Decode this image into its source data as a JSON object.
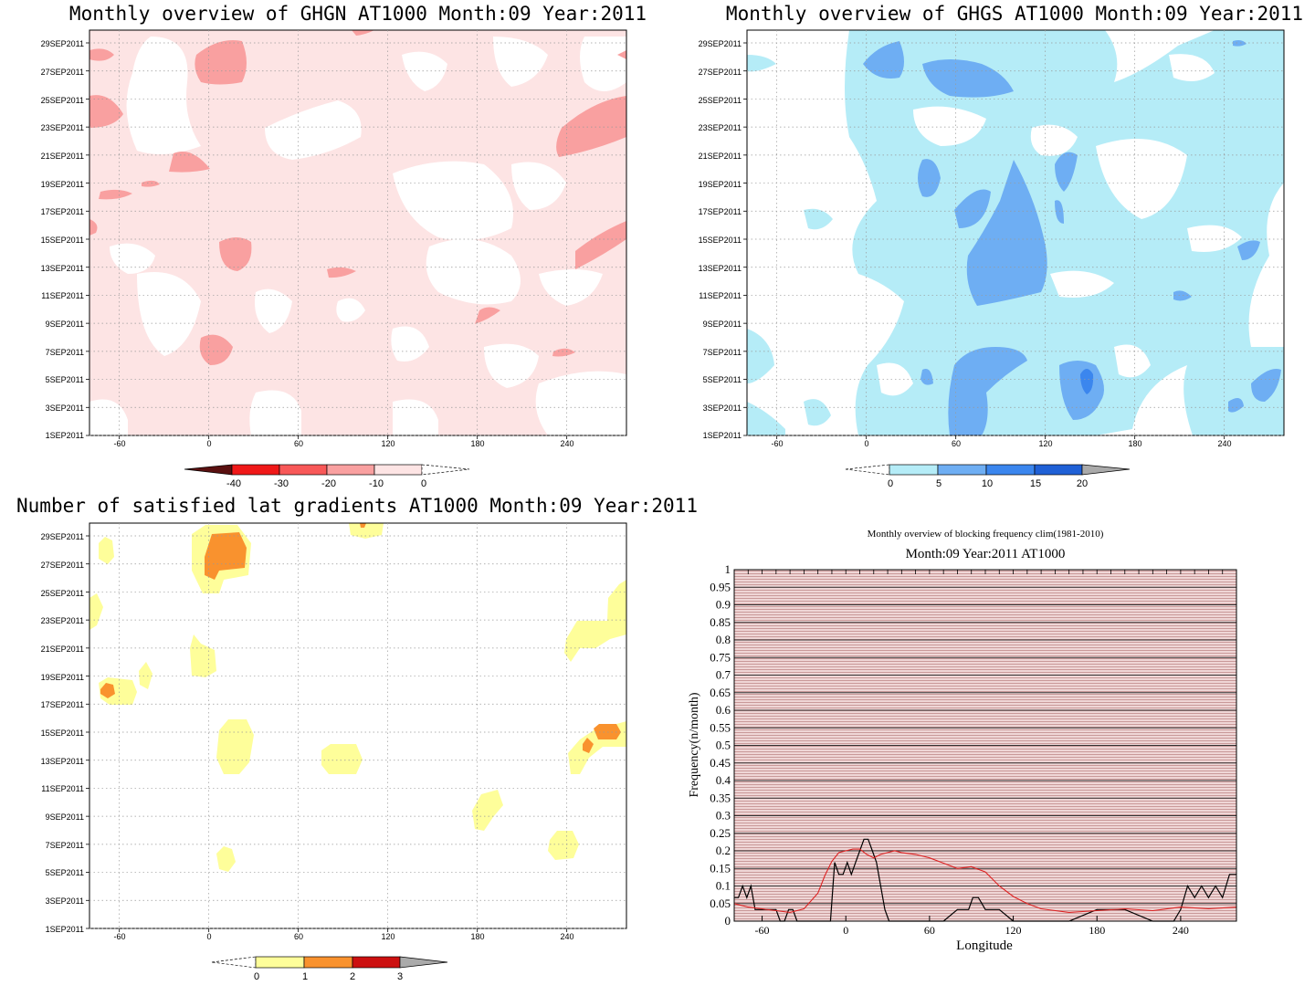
{
  "colors": {
    "ghgn_levels": [
      "#5a1010",
      "#f01818",
      "#f85858",
      "#f9a0a0",
      "#fde4e4"
    ],
    "ghgs_levels": [
      "#b5ecf7",
      "#6eaef3",
      "#3b86ee",
      "#1f60d6",
      "#aaaaaa"
    ],
    "sat_levels": [
      "#fefe9a",
      "#f9922e",
      "#cc1010",
      "#aaaaaa"
    ],
    "blocking_line": "#000000",
    "clim_line": "#dd2222",
    "blocking_bg": "#e8c8c8"
  },
  "chart_data": [
    {
      "type": "heatmap",
      "title": "Monthly overview of GHGN AT1000 Month:09 Year:2011",
      "x_ticks": [
        "-60",
        "0",
        "60",
        "120",
        "180",
        "240"
      ],
      "x_tick_values": [
        -60,
        0,
        60,
        120,
        180,
        240
      ],
      "xlim": [
        -80,
        280
      ],
      "y_ticks": [
        "1SEP2011",
        "3SEP2011",
        "5SEP2011",
        "7SEP2011",
        "9SEP2011",
        "11SEP2011",
        "13SEP2011",
        "15SEP2011",
        "17SEP2011",
        "19SEP2011",
        "21SEP2011",
        "23SEP2011",
        "25SEP2011",
        "27SEP2011",
        "29SEP2011"
      ],
      "colorbar": {
        "labels": [
          "-40",
          "-30",
          "-20",
          "-10",
          "0"
        ]
      },
      "grid": true
    },
    {
      "type": "heatmap",
      "title": "Monthly overview of GHGS AT1000 Month:09 Year:2011",
      "x_ticks": [
        "-60",
        "0",
        "60",
        "120",
        "180",
        "240"
      ],
      "x_tick_values": [
        -60,
        0,
        60,
        120,
        180,
        240
      ],
      "xlim": [
        -80,
        280
      ],
      "y_ticks": [
        "1SEP2011",
        "3SEP2011",
        "5SEP2011",
        "7SEP2011",
        "9SEP2011",
        "11SEP2011",
        "13SEP2011",
        "15SEP2011",
        "17SEP2011",
        "19SEP2011",
        "21SEP2011",
        "23SEP2011",
        "25SEP2011",
        "27SEP2011",
        "29SEP2011"
      ],
      "colorbar": {
        "labels": [
          "0",
          "5",
          "10",
          "15",
          "20"
        ]
      },
      "grid": true
    },
    {
      "type": "heatmap",
      "title": "Number of satisfied lat gradients AT1000 Month:09 Year:2011",
      "x_ticks": [
        "-60",
        "0",
        "60",
        "120",
        "180",
        "240"
      ],
      "x_tick_values": [
        -60,
        0,
        60,
        120,
        180,
        240
      ],
      "xlim": [
        -80,
        280
      ],
      "y_ticks": [
        "1SEP2011",
        "3SEP2011",
        "5SEP2011",
        "7SEP2011",
        "9SEP2011",
        "11SEP2011",
        "13SEP2011",
        "15SEP2011",
        "17SEP2011",
        "19SEP2011",
        "21SEP2011",
        "23SEP2011",
        "25SEP2011",
        "27SEP2011",
        "29SEP2011"
      ],
      "colorbar": {
        "labels": [
          "0",
          "1",
          "2",
          "3"
        ]
      },
      "grid": true
    },
    {
      "type": "line",
      "title": "Monthly overview of blocking frequency clim(1981-2010)",
      "subtitle": "Month:09 Year:2011  AT1000",
      "xlabel": "Longitude",
      "ylabel": "Frequency(n/month)",
      "xlim": [
        -80,
        280
      ],
      "ylim": [
        0,
        1
      ],
      "x_ticks": [
        "-60",
        "0",
        "60",
        "120",
        "180",
        "240"
      ],
      "x_tick_values": [
        -60,
        0,
        60,
        120,
        180,
        240
      ],
      "y_ticks": [
        "0",
        "0.05",
        "0.1",
        "0.15",
        "0.2",
        "0.25",
        "0.3",
        "0.35",
        "0.4",
        "0.45",
        "0.5",
        "0.55",
        "0.6",
        "0.65",
        "0.7",
        "0.75",
        "0.8",
        "0.85",
        "0.9",
        "0.95",
        "1"
      ],
      "y_tick_values": [
        0,
        0.05,
        0.1,
        0.15,
        0.2,
        0.25,
        0.3,
        0.35,
        0.4,
        0.45,
        0.5,
        0.55,
        0.6,
        0.65,
        0.7,
        0.75,
        0.8,
        0.85,
        0.9,
        0.95,
        1
      ],
      "series": [
        {
          "x": [
            -80,
            -77,
            -74,
            -71,
            -68,
            -65,
            -62,
            -59,
            -56,
            -53,
            -50,
            -47,
            -44,
            -41,
            -38,
            -35,
            -32,
            -29,
            -26,
            -23,
            -20,
            -17,
            -14,
            -11,
            -8,
            -5,
            -2,
            1,
            4,
            7,
            10,
            13,
            16,
            19,
            22,
            25,
            28,
            31,
            34,
            37,
            40,
            50,
            60,
            70,
            80,
            82,
            85,
            88,
            91,
            95,
            100,
            110,
            120,
            140,
            160,
            180,
            200,
            220,
            235,
            240,
            245,
            250,
            255,
            260,
            265,
            270,
            275,
            280
          ],
          "y": [
            0.067,
            0.067,
            0.1,
            0.067,
            0.1,
            0.033,
            0.033,
            0.033,
            0.033,
            0.033,
            0.033,
            0.0,
            0.0,
            0.033,
            0.033,
            0.0,
            0.0,
            0.0,
            0.0,
            0.0,
            0.0,
            0.0,
            0.0,
            0.0,
            0.167,
            0.133,
            0.133,
            0.167,
            0.133,
            0.167,
            0.2,
            0.233,
            0.233,
            0.2,
            0.167,
            0.1,
            0.033,
            0.0,
            0.0,
            0.0,
            0.0,
            0.0,
            0.0,
            0.0,
            0.033,
            0.033,
            0.033,
            0.033,
            0.067,
            0.067,
            0.033,
            0.033,
            0.0,
            0.0,
            0.0,
            0.033,
            0.033,
            0.0,
            0.0,
            0.033,
            0.1,
            0.067,
            0.1,
            0.067,
            0.1,
            0.067,
            0.133,
            0.133
          ]
        },
        {
          "x": [
            -80,
            -70,
            -60,
            -50,
            -40,
            -30,
            -20,
            -15,
            -10,
            -5,
            0,
            5,
            10,
            15,
            20,
            25,
            30,
            35,
            40,
            50,
            60,
            70,
            80,
            90,
            100,
            110,
            120,
            130,
            140,
            160,
            180,
            200,
            220,
            240,
            260,
            280
          ],
          "y": [
            0.05,
            0.04,
            0.035,
            0.03,
            0.025,
            0.035,
            0.08,
            0.13,
            0.17,
            0.195,
            0.2,
            0.205,
            0.205,
            0.19,
            0.18,
            0.19,
            0.195,
            0.2,
            0.195,
            0.19,
            0.18,
            0.165,
            0.15,
            0.155,
            0.14,
            0.1,
            0.07,
            0.05,
            0.035,
            0.025,
            0.03,
            0.035,
            0.03,
            0.04,
            0.035,
            0.04
          ]
        }
      ],
      "grid": true
    }
  ]
}
